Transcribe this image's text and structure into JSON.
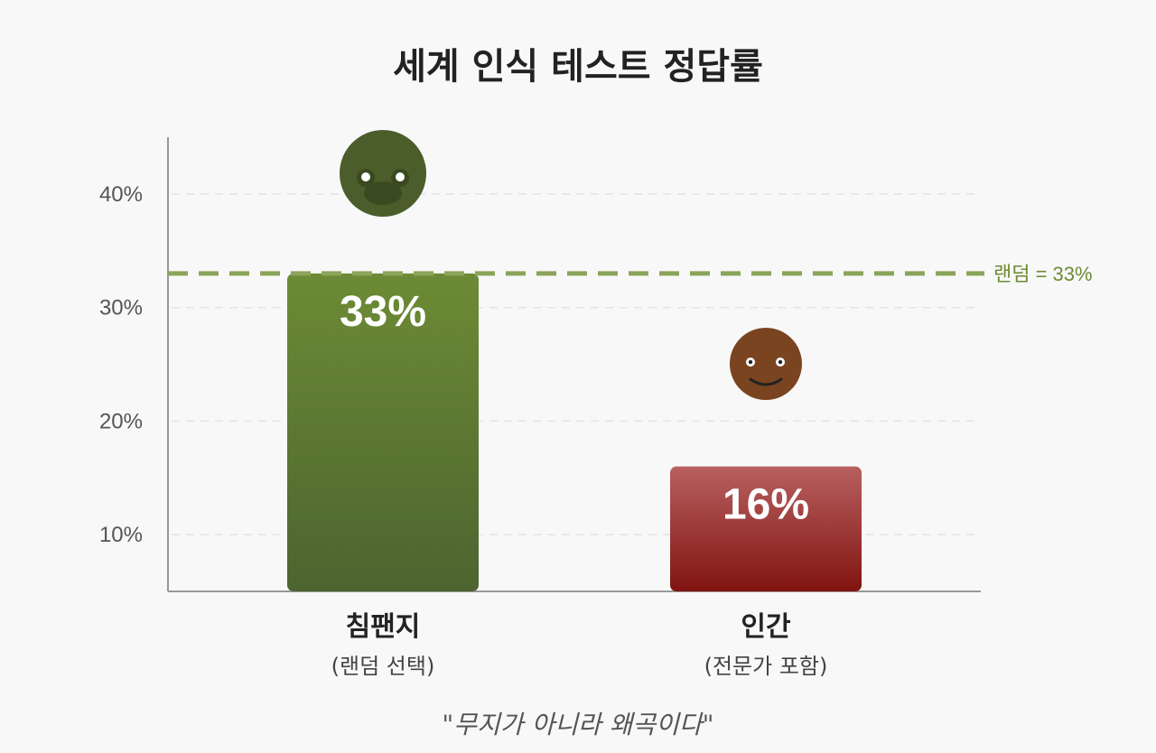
{
  "colors": {
    "chimp_top": "#6d8b35",
    "chimp_bottom": "#4d6430",
    "human_top": "#b86060",
    "human_bottom": "#801410",
    "reference": "#8aa45a",
    "chimp_face": "#4a5d2a",
    "human_face": "#7a4420"
  },
  "icons": [
    "chimp-face-icon",
    "smiley-face-icon"
  ],
  "chart_data": {
    "type": "bar",
    "title": "세계 인식 테스트 정답률",
    "categories": [
      "침팬지",
      "인간"
    ],
    "subcategories": [
      "(랜덤 선택)",
      "(전문가 포함)"
    ],
    "values": [
      33,
      16
    ],
    "data_labels": [
      "33%",
      "16%"
    ],
    "yticks": [
      10,
      20,
      30,
      40
    ],
    "ytick_labels": [
      "10%",
      "20%",
      "30%",
      "40%"
    ],
    "ylim": [
      5,
      45
    ],
    "grid": true,
    "reference_line": {
      "value": 33,
      "label": "랜덤 = 33%"
    },
    "footnote": "\"무지가 아니라 왜곡이다\""
  }
}
